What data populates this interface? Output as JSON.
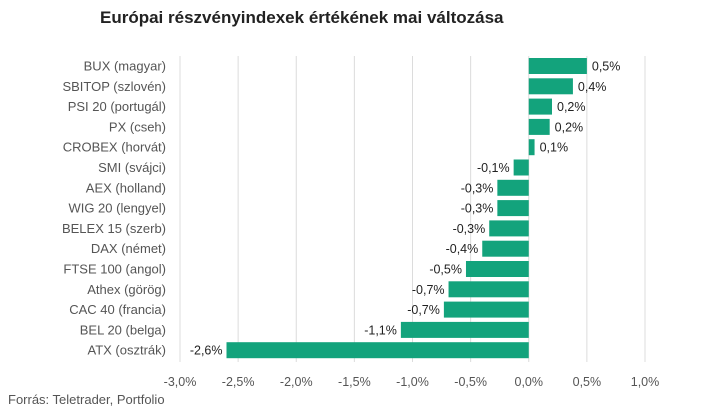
{
  "chart_data": {
    "type": "bar",
    "orientation": "horizontal",
    "title": "Európai részvényindexek értékének mai változása",
    "categories": [
      "BUX (magyar)",
      "SBITOP (szlovén)",
      "PSI 20 (portugál)",
      "PX (cseh)",
      "CROBEX (horvát)",
      "SMI (svájci)",
      "AEX (holland)",
      "WIG 20 (lengyel)",
      "BELEX 15 (szerb)",
      "DAX (német)",
      "FTSE 100 (angol)",
      "Athex (görög)",
      "CAC 40 (francia)",
      "BEL 20 (belga)",
      "ATX (osztrák)"
    ],
    "values": [
      0.5,
      0.38,
      0.2,
      0.18,
      0.05,
      -0.13,
      -0.27,
      -0.27,
      -0.34,
      -0.4,
      -0.54,
      -0.69,
      -0.73,
      -1.1,
      -2.6
    ],
    "value_labels": [
      "0,5%",
      "0,4%",
      "0,2%",
      "0,2%",
      "0,1%",
      "-0,1%",
      "-0,3%",
      "-0,3%",
      "-0,3%",
      "-0,4%",
      "-0,5%",
      "-0,7%",
      "-0,7%",
      "-1,1%",
      "-2,6%"
    ],
    "xlim": [
      -3.0,
      1.0
    ],
    "xticks": [
      -3.0,
      -2.5,
      -2.0,
      -1.5,
      -1.0,
      -0.5,
      0.0,
      0.5,
      1.0
    ],
    "xtick_labels": [
      "-3,0%",
      "-2,5%",
      "-2,0%",
      "-1,5%",
      "-1,0%",
      "-0,5%",
      "0,0%",
      "0,5%",
      "1,0%"
    ],
    "xlabel": "",
    "ylabel": "",
    "grid": "vertical",
    "legend": "none",
    "bar_color": "#13a37c"
  },
  "source": "Forrás: Teletrader, Portfolio"
}
